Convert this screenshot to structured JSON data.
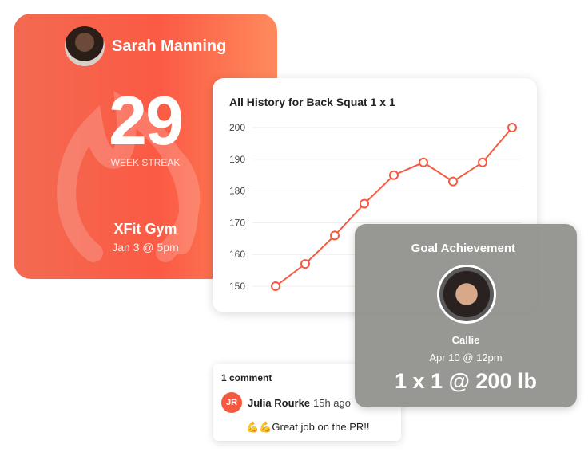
{
  "streak_card": {
    "user_name": "Sarah Manning",
    "streak_count": "29",
    "streak_label": "WEEK STREAK",
    "gym": "XFit Gym",
    "date": "Jan 3 @ 5pm"
  },
  "chart_card": {
    "title": "All History for Back Squat 1 x 1"
  },
  "chart_data": {
    "type": "line",
    "title": "All History for Back Squat 1 x 1",
    "ylim": [
      150,
      200
    ],
    "yticks": [
      "150",
      "160",
      "170",
      "180",
      "190",
      "200"
    ],
    "values": [
      150,
      157,
      166,
      176,
      185,
      189,
      183,
      189,
      200
    ],
    "grid": true,
    "line_color": "#f55a40"
  },
  "goal_card": {
    "title": "Goal Achievement",
    "user_name": "Callie",
    "date": "Apr 10 @ 12pm",
    "result": "1 x 1 @ 200 lb"
  },
  "comments": {
    "count_label": "1 comment",
    "items": [
      {
        "initials": "JR",
        "author": "Julia Rourke",
        "time": "15h ago",
        "text": "💪💪Great job on the PR!!"
      }
    ]
  }
}
